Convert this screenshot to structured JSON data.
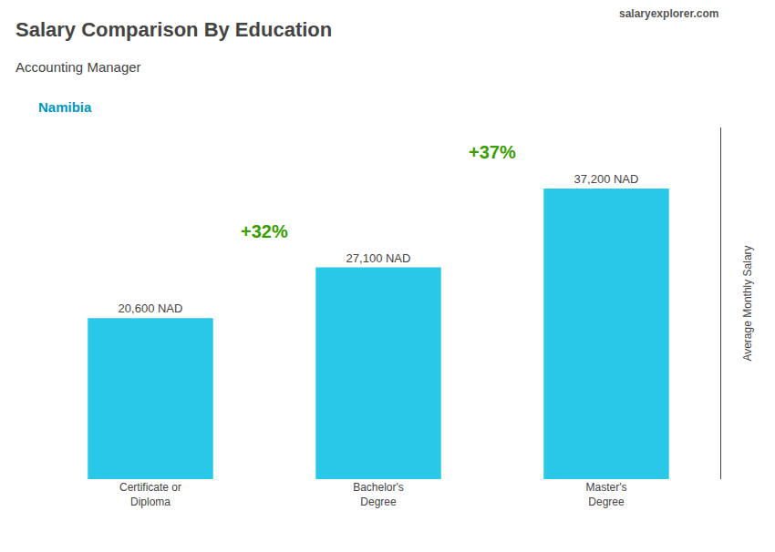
{
  "chart_data": {
    "type": "bar",
    "title": "Salary Comparison By Education",
    "subtitle": "Accounting Manager",
    "ylabel": "Average Monthly Salary",
    "categories": [
      "Certificate or\nDiploma",
      "Bachelor's\nDegree",
      "Master's\nDegree"
    ],
    "values": [
      20600,
      27100,
      37200
    ],
    "value_labels": [
      "20,600 NAD",
      "27,100 NAD",
      "37,200 NAD"
    ],
    "data_labels": true,
    "color": "#29c8e8",
    "ylim": [
      0,
      45000
    ],
    "grid": false,
    "tick_labels": "x",
    "annotations": [
      {
        "text": "+32%",
        "from": "Certificate or\nDiploma",
        "to": "Bachelor's\nDegree"
      },
      {
        "text": "+37%",
        "from": "Bachelor's\nDegree",
        "to": "Master's\nDegree"
      },
      {
        "text": "Namibia"
      },
      {
        "text": "salaryexplorer.com"
      }
    ]
  }
}
